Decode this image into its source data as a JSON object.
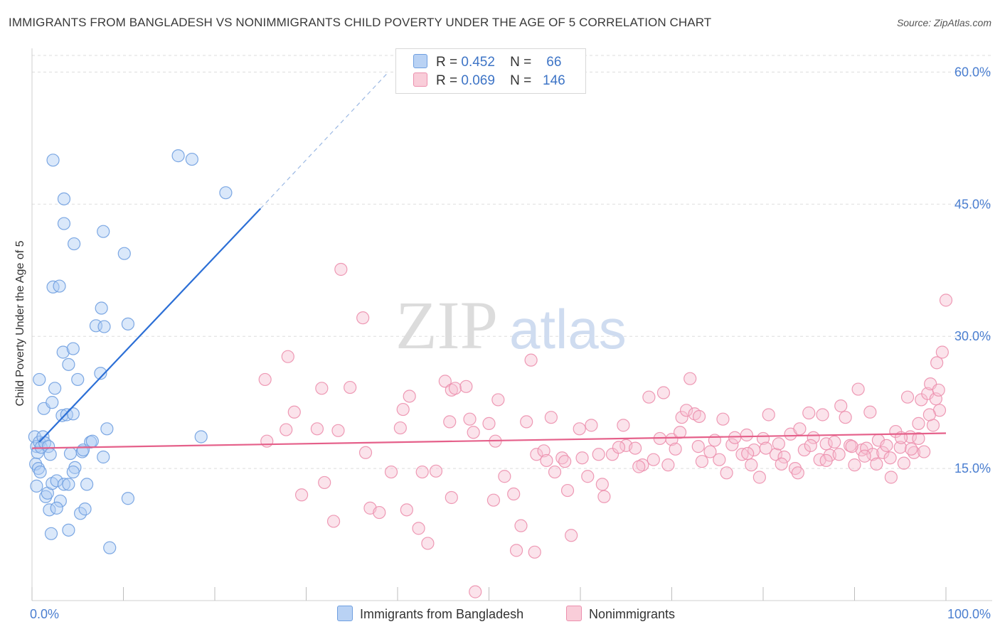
{
  "title": "IMMIGRANTS FROM BANGLADESH VS NONIMMIGRANTS CHILD POVERTY UNDER THE AGE OF 5 CORRELATION CHART",
  "source": "Source: ZipAtlas.com",
  "watermark": {
    "zip": "ZIP",
    "atlas": "atlas"
  },
  "legend": {
    "blue": {
      "r_label": "R =",
      "r_value": "0.452",
      "n_label": "N =",
      "n_value": "66"
    },
    "pink": {
      "r_label": "R =",
      "r_value": "0.069",
      "n_label": "N =",
      "n_value": "146"
    }
  },
  "bottom_legend": {
    "blue": "Immigrants from Bangladesh",
    "pink": "Nonimmigrants"
  },
  "colors": {
    "blue": "#6f9fe0",
    "blue_fill": "#aecbf3",
    "blue_line": "#2c6fd6",
    "pink": "#ec8fad",
    "pink_fill": "#f7c2d3",
    "pink_line": "#e5608a",
    "tick_text": "#4a7ed0",
    "grid": "#dddddd"
  },
  "chart_data": {
    "type": "scatter",
    "ylabel": "Child Poverty Under the Age of 5",
    "xlabel": "",
    "xlim": [
      0,
      100
    ],
    "ylim": [
      0,
      63.5
    ],
    "x_tick_labels": [
      {
        "value": 0,
        "label": "0.0%"
      },
      {
        "value": 100,
        "label": "100.0%"
      }
    ],
    "y_ticks": [
      {
        "value": 15,
        "label": "15.0%"
      },
      {
        "value": 30,
        "label": "30.0%"
      },
      {
        "value": 45,
        "label": "45.0%"
      },
      {
        "value": 60,
        "label": "60.0%"
      }
    ],
    "grid": "horizontal dashed",
    "series": [
      {
        "name": "Immigrants from Bangladesh",
        "r": 0.452,
        "n": 66,
        "trend": {
          "x0": 0.8,
          "y0": 18.0,
          "x1": 25.0,
          "y1": 44.5,
          "dash_to_x": 39.0,
          "dash_to_y": 60.0
        },
        "points": [
          [
            0.3,
            18.6
          ],
          [
            0.5,
            17.5
          ],
          [
            0.6,
            16.8
          ],
          [
            0.4,
            15.5
          ],
          [
            0.7,
            15.0
          ],
          [
            0.5,
            13.0
          ],
          [
            0.8,
            18.0
          ],
          [
            1.0,
            17.4
          ],
          [
            1.2,
            18.6
          ],
          [
            0.9,
            14.6
          ],
          [
            1.3,
            21.8
          ],
          [
            0.8,
            25.1
          ],
          [
            1.4,
            17.9
          ],
          [
            1.8,
            17.5
          ],
          [
            2.2,
            22.5
          ],
          [
            1.5,
            11.8
          ],
          [
            2.0,
            16.6
          ],
          [
            1.7,
            12.2
          ],
          [
            2.5,
            24.1
          ],
          [
            2.2,
            13.3
          ],
          [
            1.9,
            10.3
          ],
          [
            2.7,
            13.6
          ],
          [
            2.3,
            35.6
          ],
          [
            3.0,
            35.7
          ],
          [
            2.3,
            50.0
          ],
          [
            3.5,
            13.2
          ],
          [
            3.1,
            11.3
          ],
          [
            2.7,
            10.5
          ],
          [
            3.3,
            21.0
          ],
          [
            3.8,
            21.1
          ],
          [
            3.4,
            28.2
          ],
          [
            3.5,
            42.8
          ],
          [
            3.5,
            45.6
          ],
          [
            4.0,
            26.8
          ],
          [
            4.5,
            21.2
          ],
          [
            4.2,
            16.7
          ],
          [
            4.0,
            8.0
          ],
          [
            2.1,
            7.6
          ],
          [
            4.0,
            13.2
          ],
          [
            4.7,
            15.1
          ],
          [
            4.5,
            14.6
          ],
          [
            5.5,
            16.9
          ],
          [
            4.5,
            28.6
          ],
          [
            5.3,
            9.9
          ],
          [
            4.6,
            40.5
          ],
          [
            5.0,
            25.1
          ],
          [
            5.6,
            17.1
          ],
          [
            6.0,
            13.2
          ],
          [
            5.8,
            10.4
          ],
          [
            6.4,
            18.0
          ],
          [
            6.6,
            18.1
          ],
          [
            7.0,
            31.2
          ],
          [
            7.6,
            33.2
          ],
          [
            7.5,
            25.8
          ],
          [
            7.9,
            31.1
          ],
          [
            7.8,
            16.3
          ],
          [
            7.8,
            41.9
          ],
          [
            8.2,
            19.5
          ],
          [
            8.5,
            6.0
          ],
          [
            10.5,
            11.6
          ],
          [
            10.1,
            39.4
          ],
          [
            10.5,
            31.4
          ],
          [
            16.0,
            50.5
          ],
          [
            17.5,
            50.1
          ],
          [
            18.5,
            18.6
          ],
          [
            21.2,
            46.3
          ]
        ]
      },
      {
        "name": "Nonimmigrants",
        "r": 0.069,
        "n": 146,
        "trend": {
          "x0": 0,
          "y0": 17.3,
          "x1": 100,
          "y1": 19.0
        },
        "points": [
          [
            25.5,
            25.1
          ],
          [
            25.7,
            18.1
          ],
          [
            27.8,
            19.4
          ],
          [
            28.0,
            27.7
          ],
          [
            28.7,
            21.4
          ],
          [
            29.5,
            12.0
          ],
          [
            31.2,
            19.5
          ],
          [
            31.7,
            24.1
          ],
          [
            32.0,
            13.4
          ],
          [
            33.0,
            9.0
          ],
          [
            33.5,
            19.3
          ],
          [
            34.8,
            24.2
          ],
          [
            36.5,
            16.8
          ],
          [
            37.0,
            10.5
          ],
          [
            38.0,
            10.0
          ],
          [
            39.3,
            14.6
          ],
          [
            40.3,
            19.6
          ],
          [
            40.6,
            21.7
          ],
          [
            41.3,
            23.2
          ],
          [
            42.3,
            8.2
          ],
          [
            42.7,
            14.6
          ],
          [
            43.3,
            6.5
          ],
          [
            45.2,
            24.9
          ],
          [
            45.7,
            20.3
          ],
          [
            45.9,
            11.7
          ],
          [
            45.9,
            23.9
          ],
          [
            46.3,
            24.1
          ],
          [
            47.5,
            24.3
          ],
          [
            48.3,
            19.1
          ],
          [
            48.5,
            1.0
          ],
          [
            50.0,
            20.1
          ],
          [
            50.5,
            11.4
          ],
          [
            50.7,
            18.1
          ],
          [
            51.0,
            22.8
          ],
          [
            51.7,
            14.1
          ],
          [
            52.7,
            12.1
          ],
          [
            53.5,
            8.5
          ],
          [
            54.6,
            27.3
          ],
          [
            55.0,
            5.5
          ],
          [
            55.2,
            16.6
          ],
          [
            56.0,
            17.0
          ],
          [
            56.8,
            20.8
          ],
          [
            57.2,
            14.6
          ],
          [
            58.0,
            16.2
          ],
          [
            58.6,
            12.5
          ],
          [
            59.0,
            7.4
          ],
          [
            59.9,
            19.5
          ],
          [
            60.2,
            16.2
          ],
          [
            61.2,
            19.9
          ],
          [
            62.4,
            13.2
          ],
          [
            62.6,
            11.8
          ],
          [
            63.5,
            16.6
          ],
          [
            64.7,
            19.9
          ],
          [
            65.0,
            17.6
          ],
          [
            66.0,
            17.3
          ],
          [
            66.8,
            15.4
          ],
          [
            67.5,
            23.1
          ],
          [
            68.0,
            16.0
          ],
          [
            69.1,
            23.6
          ],
          [
            70.0,
            18.3
          ],
          [
            70.4,
            17.2
          ],
          [
            71.1,
            20.8
          ],
          [
            71.6,
            21.6
          ],
          [
            72.0,
            25.2
          ],
          [
            72.5,
            21.2
          ],
          [
            72.9,
            17.5
          ],
          [
            73.3,
            15.8
          ],
          [
            74.7,
            18.2
          ],
          [
            75.2,
            16.0
          ],
          [
            75.6,
            20.6
          ],
          [
            76.0,
            14.5
          ],
          [
            76.6,
            17.7
          ],
          [
            77.7,
            16.6
          ],
          [
            78.2,
            18.8
          ],
          [
            78.7,
            15.4
          ],
          [
            79.0,
            17.1
          ],
          [
            79.6,
            14.0
          ],
          [
            80.0,
            18.4
          ],
          [
            80.6,
            21.1
          ],
          [
            81.4,
            16.6
          ],
          [
            81.7,
            17.8
          ],
          [
            82.3,
            16.3
          ],
          [
            83.0,
            18.9
          ],
          [
            83.5,
            15.0
          ],
          [
            84.0,
            19.5
          ],
          [
            84.5,
            17.1
          ],
          [
            85.0,
            21.3
          ],
          [
            85.5,
            18.5
          ],
          [
            86.2,
            16.0
          ],
          [
            86.5,
            21.1
          ],
          [
            86.9,
            17.8
          ],
          [
            87.3,
            16.5
          ],
          [
            87.8,
            18.0
          ],
          [
            88.5,
            22.1
          ],
          [
            89.0,
            20.8
          ],
          [
            89.5,
            17.6
          ],
          [
            90.0,
            15.4
          ],
          [
            90.4,
            24.0
          ],
          [
            90.8,
            17.1
          ],
          [
            91.3,
            17.3
          ],
          [
            91.7,
            21.4
          ],
          [
            92.0,
            16.6
          ],
          [
            92.6,
            18.2
          ],
          [
            93.1,
            16.8
          ],
          [
            93.5,
            17.6
          ],
          [
            94.0,
            14.0
          ],
          [
            94.5,
            19.2
          ],
          [
            95.0,
            17.4
          ],
          [
            95.4,
            15.6
          ],
          [
            95.8,
            23.1
          ],
          [
            96.1,
            18.6
          ],
          [
            96.5,
            16.8
          ],
          [
            97.0,
            20.1
          ],
          [
            97.3,
            22.8
          ],
          [
            97.6,
            16.9
          ],
          [
            98.0,
            23.5
          ],
          [
            98.3,
            24.6
          ],
          [
            98.6,
            19.9
          ],
          [
            99.0,
            27.0
          ],
          [
            99.3,
            21.6
          ],
          [
            99.6,
            28.2
          ],
          [
            100.0,
            34.1
          ],
          [
            98.9,
            22.9
          ],
          [
            99.2,
            23.9
          ],
          [
            98.2,
            21.1
          ],
          [
            97.0,
            18.4
          ],
          [
            96.2,
            17.2
          ],
          [
            95.1,
            18.5
          ],
          [
            93.9,
            16.2
          ],
          [
            92.4,
            15.5
          ],
          [
            91.1,
            16.4
          ],
          [
            89.7,
            17.5
          ],
          [
            88.3,
            16.6
          ],
          [
            86.9,
            15.9
          ],
          [
            85.2,
            17.6
          ],
          [
            83.8,
            14.5
          ],
          [
            82.0,
            15.5
          ],
          [
            80.3,
            17.3
          ],
          [
            78.3,
            16.7
          ],
          [
            76.9,
            18.5
          ],
          [
            74.2,
            16.9
          ],
          [
            73.0,
            20.9
          ],
          [
            70.9,
            19.1
          ],
          [
            69.6,
            15.4
          ],
          [
            68.7,
            18.4
          ],
          [
            66.4,
            15.2
          ],
          [
            64.2,
            17.4
          ],
          [
            62.0,
            16.6
          ],
          [
            60.8,
            14.1
          ],
          [
            58.3,
            15.8
          ],
          [
            56.3,
            15.9
          ],
          [
            54.1,
            20.3
          ],
          [
            47.9,
            20.6
          ],
          [
            44.2,
            14.7
          ],
          [
            41.0,
            10.3
          ],
          [
            36.2,
            32.1
          ],
          [
            33.8,
            37.6
          ],
          [
            53.0,
            5.7
          ]
        ]
      }
    ]
  }
}
